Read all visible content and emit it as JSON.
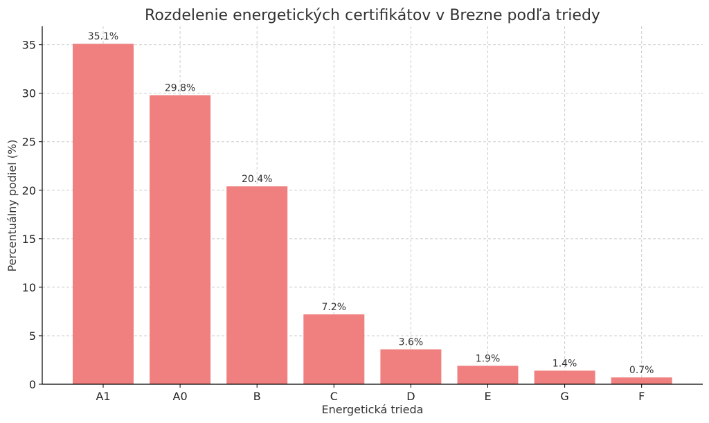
{
  "chart_data": {
    "type": "bar",
    "title": "Rozdelenie energetických certifikátov v Brezne podľa triedy",
    "xlabel": "Energetická trieda",
    "ylabel": "Percentuálny podiel (%)",
    "categories": [
      "A1",
      "A0",
      "B",
      "C",
      "D",
      "E",
      "G",
      "F"
    ],
    "values": [
      35.1,
      29.8,
      20.4,
      7.2,
      3.6,
      1.9,
      1.4,
      0.7
    ],
    "data_labels": [
      "35.1%",
      "29.8%",
      "20.4%",
      "7.2%",
      "3.6%",
      "1.9%",
      "1.4%",
      "0.7%"
    ],
    "yticks": [
      0,
      5,
      10,
      15,
      20,
      25,
      30,
      35
    ],
    "ylim": [
      0,
      36.9
    ],
    "grid": true,
    "bar_color": "#f08080"
  }
}
